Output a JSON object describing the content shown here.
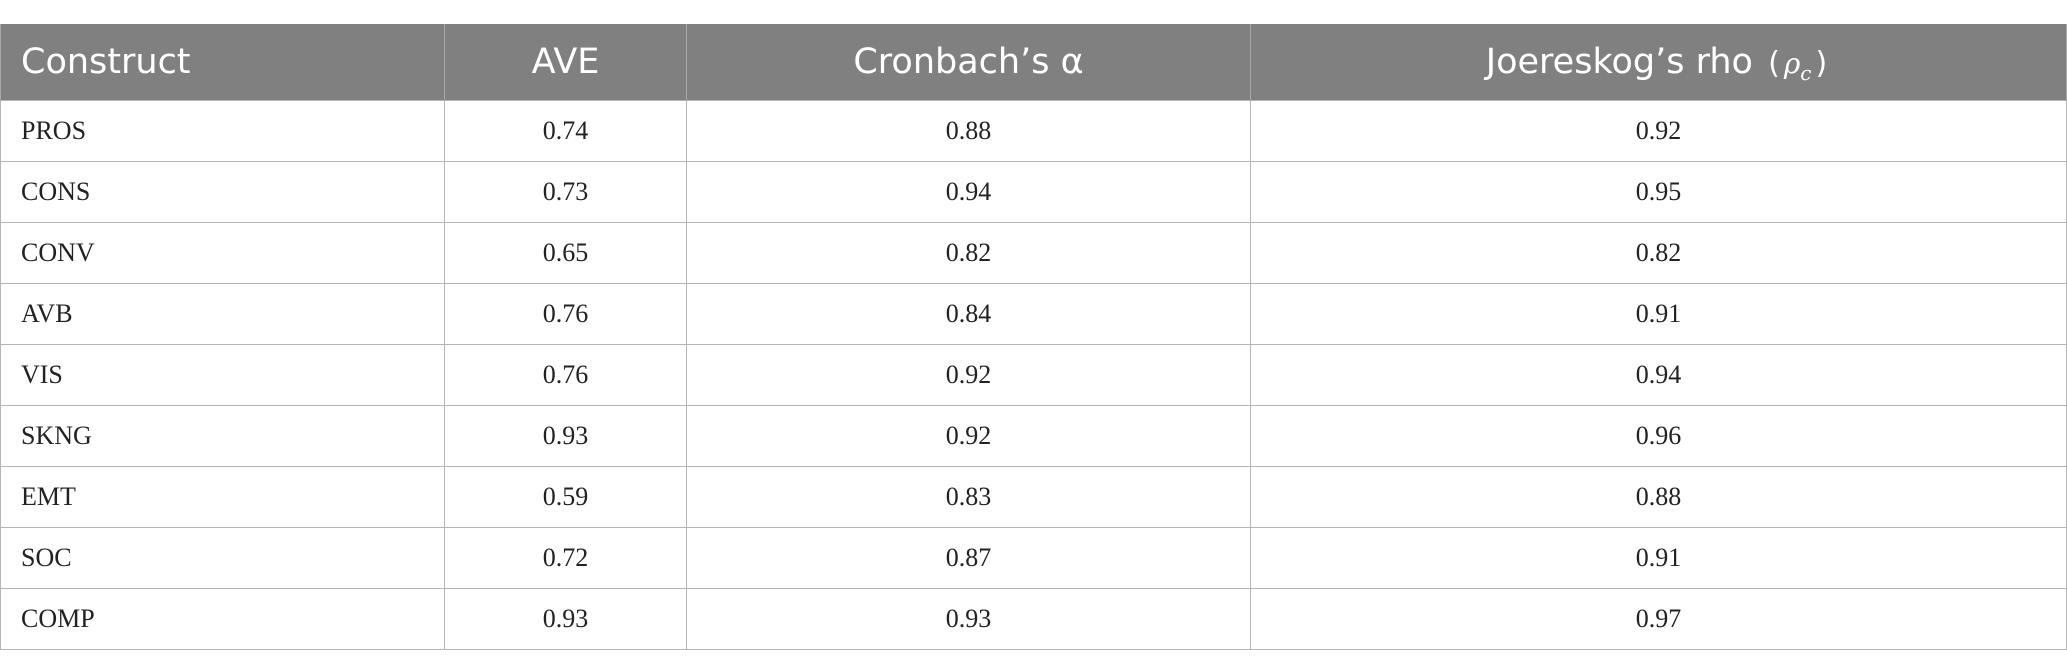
{
  "table": {
    "headers": {
      "construct": "Construct",
      "ave": "AVE",
      "alpha": "Cronbach’s α",
      "rho_label": "Joereskog’s rho",
      "rho_open": "(",
      "rho_symbol": "ρ",
      "rho_sub": "c",
      "rho_close": ")"
    },
    "rows": [
      {
        "construct": "PROS",
        "ave": "0.74",
        "alpha": "0.88",
        "rho": "0.92"
      },
      {
        "construct": "CONS",
        "ave": "0.73",
        "alpha": "0.94",
        "rho": "0.95"
      },
      {
        "construct": "CONV",
        "ave": "0.65",
        "alpha": "0.82",
        "rho": "0.82"
      },
      {
        "construct": "AVB",
        "ave": "0.76",
        "alpha": "0.84",
        "rho": "0.91"
      },
      {
        "construct": "VIS",
        "ave": "0.76",
        "alpha": "0.92",
        "rho": "0.94"
      },
      {
        "construct": "SKNG",
        "ave": "0.93",
        "alpha": "0.92",
        "rho": "0.96"
      },
      {
        "construct": "EMT",
        "ave": "0.59",
        "alpha": "0.83",
        "rho": "0.88"
      },
      {
        "construct": "SOC",
        "ave": "0.72",
        "alpha": "0.87",
        "rho": "0.91"
      },
      {
        "construct": "COMP",
        "ave": "0.93",
        "alpha": "0.93",
        "rho": "0.97"
      }
    ]
  }
}
